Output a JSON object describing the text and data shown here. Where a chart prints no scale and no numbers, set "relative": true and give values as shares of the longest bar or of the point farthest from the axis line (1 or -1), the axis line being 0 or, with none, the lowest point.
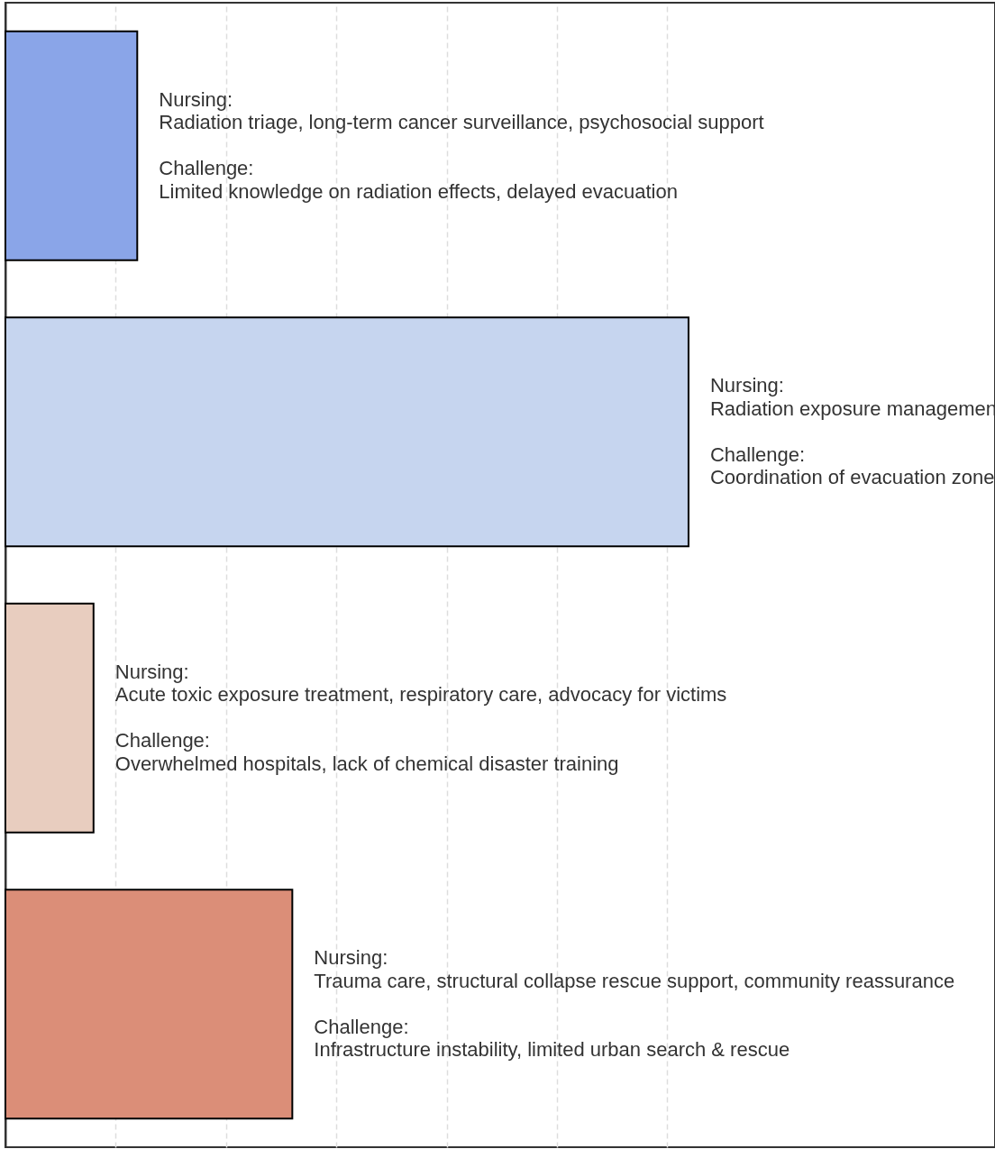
{
  "chart_data": {
    "type": "bar",
    "orientation": "horizontal",
    "relative": true,
    "categories": [
      null,
      null,
      null,
      null
    ],
    "values": [
      0.193,
      1,
      0.129,
      0.42
    ],
    "colors": [
      "#8aa5e8",
      "#c6d5ef",
      "#e8cdbf",
      "#db8e78"
    ],
    "grid": "x",
    "annotations": [
      "Nursing:\nRadiation triage, long-term cancer surveillance, psychosocial support\n\nChallenge:\nLimited knowledge on radiation effects, delayed evacuation",
      "Nursing:\nRadiation exposure managemen\n\nChallenge:\nCoordination of evacuation zone",
      "Nursing:\nAcute toxic exposure treatment, respiratory care, advocacy for victims\n\nChallenge:\nOverwhelmed hospitals, lack of chemical disaster training",
      "Nursing:\nTrauma care, structural collapse rescue support, community reassurance\n\nChallenge:\nInfrastructure instability, limited urban search & rescue"
    ]
  }
}
